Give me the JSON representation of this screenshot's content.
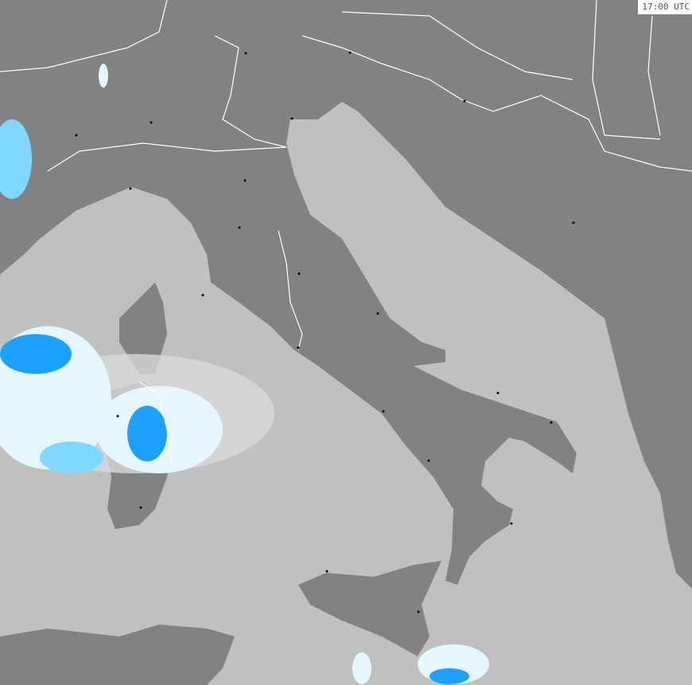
{
  "map": {
    "timestamp": "17:00 UTC",
    "colors": {
      "sea": "#c0c0c0",
      "land": "#828282",
      "border": "#ffffff",
      "precip_light": "#e6f6ff",
      "precip_medium": "#7fd8ff",
      "precip_heavy": "#1ea0ff",
      "cloud_gray": "#d8d8d8"
    }
  }
}
